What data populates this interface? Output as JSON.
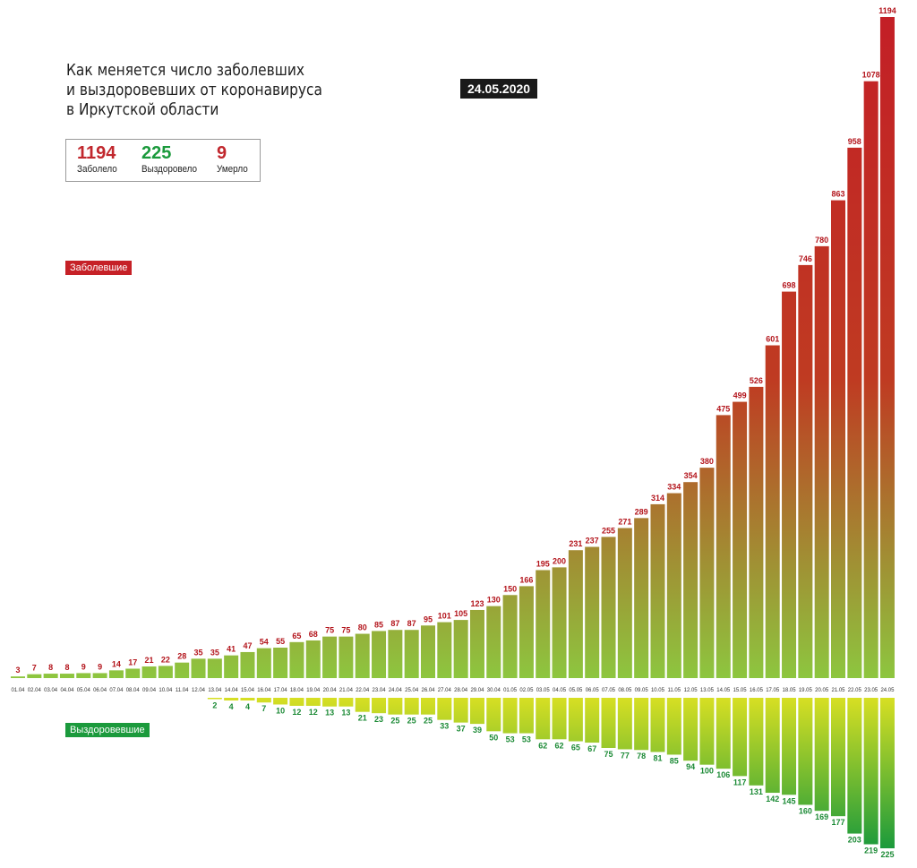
{
  "title_lines": [
    "Как меняется число заболевших",
    "и выздоровевших от коронавируса",
    "в Иркутской области"
  ],
  "date": "24.05.2020",
  "stats": {
    "infected": {
      "value": "1194",
      "label": "Заболело"
    },
    "recovered": {
      "value": "225",
      "label": "Выздоровело"
    },
    "died": {
      "value": "9",
      "label": "Умерло"
    }
  },
  "legend": {
    "infected": "Заболевшие",
    "recovered": "Выздоровевшие"
  },
  "colors": {
    "infected_top": "#c31f26",
    "infected_bottom": "#8dc63f",
    "recovered_top": "#d7df23",
    "recovered_bottom": "#1b9a3c",
    "infected_label": "#b3141b",
    "recovered_label": "#1b8a35"
  },
  "chart_data": {
    "type": "bar",
    "categories": [
      "01.04",
      "02.04",
      "03.04",
      "04.04",
      "05.04",
      "06.04",
      "07.04",
      "08.04",
      "09.04",
      "10.04",
      "11.04",
      "12.04",
      "13.04",
      "14.04",
      "15.04",
      "16.04",
      "17.04",
      "18.04",
      "19.04",
      "20.04",
      "21.04",
      "22.04",
      "23.04",
      "24.04",
      "25.04",
      "26.04",
      "27.04",
      "28.04",
      "29.04",
      "30.04",
      "01.05",
      "02.05",
      "03.05",
      "04.05",
      "05.05",
      "06.05",
      "07.05",
      "08.05",
      "09.05",
      "10.05",
      "11.05",
      "12.05",
      "13.05",
      "14.05",
      "15.05",
      "16.05",
      "17.05",
      "18.05",
      "19.05",
      "20.05",
      "21.05",
      "22.05",
      "23.05",
      "24.05"
    ],
    "series": [
      {
        "name": "Заболевшие",
        "values": [
          3,
          7,
          8,
          8,
          9,
          9,
          14,
          17,
          21,
          22,
          28,
          35,
          35,
          41,
          47,
          54,
          55,
          65,
          68,
          75,
          75,
          80,
          85,
          87,
          87,
          95,
          101,
          105,
          123,
          130,
          150,
          166,
          195,
          200,
          231,
          237,
          255,
          271,
          289,
          314,
          334,
          354,
          380,
          475,
          499,
          526,
          601,
          698,
          746,
          780,
          863,
          958,
          1078,
          1194
        ]
      },
      {
        "name": "Выздоровевшие",
        "values": [
          null,
          null,
          null,
          null,
          null,
          null,
          null,
          null,
          null,
          null,
          null,
          null,
          2,
          4,
          4,
          7,
          10,
          12,
          12,
          13,
          13,
          21,
          23,
          25,
          25,
          25,
          33,
          37,
          39,
          50,
          53,
          53,
          62,
          62,
          65,
          67,
          75,
          77,
          78,
          81,
          85,
          94,
          100,
          106,
          117,
          131,
          142,
          145,
          160,
          169,
          177,
          203,
          219,
          225
        ]
      }
    ]
  }
}
